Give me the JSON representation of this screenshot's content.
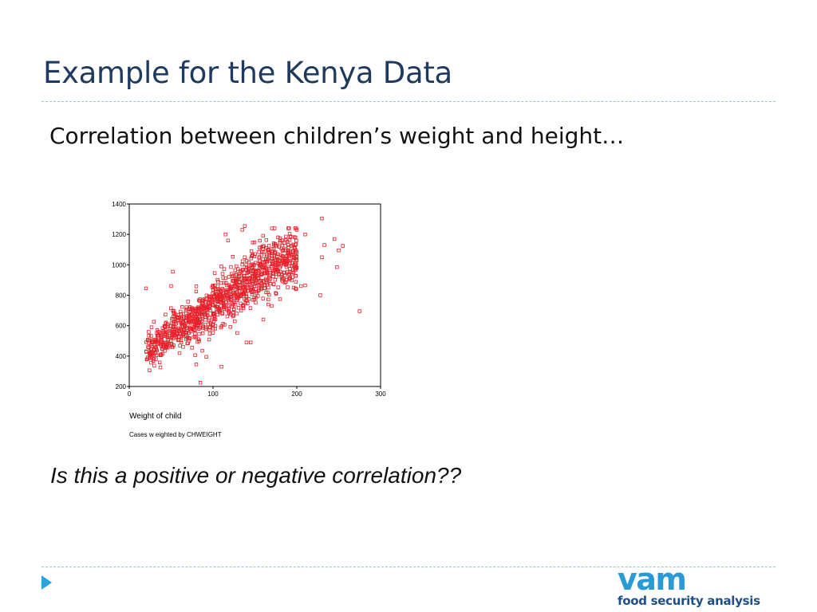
{
  "slide": {
    "title": "Example for the Kenya Data",
    "subtitle": "Correlation between children’s weight and height…",
    "question": "Is this a positive or negative correlation??"
  },
  "logo": {
    "main": "vam",
    "sub": "food security analysis"
  },
  "colors": {
    "title": "#1f3a5f",
    "accent": "#2aa3dc",
    "marker": "#e8202a",
    "logo_main": "#2a9ad6",
    "logo_sub": "#1f4f86"
  },
  "icons": {
    "bullet": "triangle-right-icon"
  },
  "chart_data": {
    "type": "scatter",
    "title": "",
    "xlabel": "Weight of child",
    "ylabel": "",
    "footnote": "Cases w eighted by CHWEIGHT",
    "xlim": [
      0,
      300
    ],
    "ylim": [
      200,
      1400
    ],
    "xticks": [
      0,
      100,
      200,
      300
    ],
    "yticks": [
      200,
      400,
      600,
      800,
      1000,
      1200,
      1400
    ],
    "grid": false,
    "legend": "none",
    "marker": "hollow-square",
    "trend": {
      "x_range": [
        20,
        200
      ],
      "slope": 3.7,
      "intercept": 360
    },
    "cluster_point_count": 1100,
    "outliers": [
      {
        "x": 20,
        "y": 845
      },
      {
        "x": 85,
        "y": 225
      },
      {
        "x": 110,
        "y": 330
      },
      {
        "x": 80,
        "y": 345
      },
      {
        "x": 92,
        "y": 395
      },
      {
        "x": 75,
        "y": 455
      },
      {
        "x": 60,
        "y": 420
      },
      {
        "x": 140,
        "y": 490
      },
      {
        "x": 145,
        "y": 490
      },
      {
        "x": 230,
        "y": 1305
      },
      {
        "x": 275,
        "y": 695
      },
      {
        "x": 228,
        "y": 800
      },
      {
        "x": 248,
        "y": 985
      },
      {
        "x": 245,
        "y": 1170
      },
      {
        "x": 255,
        "y": 1125
      },
      {
        "x": 233,
        "y": 1130
      },
      {
        "x": 250,
        "y": 1095
      },
      {
        "x": 138,
        "y": 1255
      },
      {
        "x": 135,
        "y": 1230
      },
      {
        "x": 115,
        "y": 1200
      },
      {
        "x": 118,
        "y": 1160
      },
      {
        "x": 200,
        "y": 1230
      },
      {
        "x": 210,
        "y": 1200
      },
      {
        "x": 180,
        "y": 1175
      },
      {
        "x": 185,
        "y": 1145
      },
      {
        "x": 230,
        "y": 1050
      },
      {
        "x": 205,
        "y": 860
      },
      {
        "x": 210,
        "y": 865
      },
      {
        "x": 28,
        "y": 405
      },
      {
        "x": 25,
        "y": 415
      },
      {
        "x": 32,
        "y": 455
      },
      {
        "x": 50,
        "y": 860
      },
      {
        "x": 52,
        "y": 955
      },
      {
        "x": 160,
        "y": 640
      },
      {
        "x": 180,
        "y": 775
      },
      {
        "x": 170,
        "y": 730
      }
    ]
  }
}
